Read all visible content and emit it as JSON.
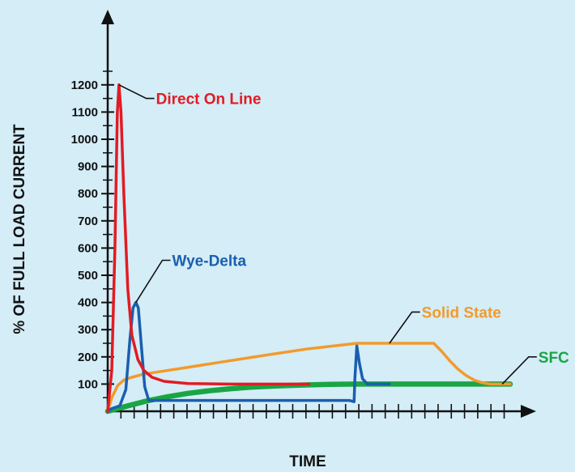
{
  "chart_data": {
    "type": "line",
    "title": "",
    "xlabel": "TIME",
    "ylabel": "% OF FULL LOAD CURRENT",
    "ylim": [
      0,
      1250
    ],
    "xlim": [
      0,
      100
    ],
    "yticks": [
      "100",
      "200",
      "300",
      "400",
      "500",
      "600",
      "700",
      "800",
      "900",
      "1000",
      "1100",
      "1200"
    ],
    "ytick_values": [
      100,
      200,
      300,
      400,
      500,
      600,
      700,
      800,
      900,
      1000,
      1100,
      1200
    ],
    "x_tick_count": 30,
    "grid": false,
    "series": [
      {
        "name": "Direct On Line",
        "color": "#e21b23",
        "points": [
          [
            0,
            0
          ],
          [
            1,
            150
          ],
          [
            1.8,
            600
          ],
          [
            2.4,
            1100
          ],
          [
            2.8,
            1200
          ],
          [
            3.3,
            1100
          ],
          [
            4,
            800
          ],
          [
            5,
            450
          ],
          [
            6,
            280
          ],
          [
            7.5,
            190
          ],
          [
            9,
            150
          ],
          [
            11,
            125
          ],
          [
            14,
            110
          ],
          [
            20,
            102
          ],
          [
            30,
            100
          ],
          [
            50,
            100
          ]
        ]
      },
      {
        "name": "Wye-Delta",
        "color": "#1a5fae",
        "points": [
          [
            0,
            0
          ],
          [
            1,
            10
          ],
          [
            3,
            20
          ],
          [
            4.5,
            80
          ],
          [
            5.5,
            260
          ],
          [
            6.3,
            380
          ],
          [
            7,
            400
          ],
          [
            7.6,
            380
          ],
          [
            8.3,
            250
          ],
          [
            9.2,
            90
          ],
          [
            10.2,
            40
          ],
          [
            12,
            40
          ],
          [
            30,
            40
          ],
          [
            60,
            40
          ],
          [
            61.2,
            35
          ],
          [
            61.4,
            120
          ],
          [
            61.9,
            240
          ],
          [
            62.5,
            180
          ],
          [
            63.3,
            120
          ],
          [
            64.5,
            100
          ],
          [
            67,
            100
          ],
          [
            70,
            100
          ]
        ]
      },
      {
        "name": "Solid State",
        "color": "#f39a2b",
        "points": [
          [
            0,
            0
          ],
          [
            1,
            50
          ],
          [
            2.5,
            95
          ],
          [
            4,
            115
          ],
          [
            6,
            125
          ],
          [
            8,
            133
          ],
          [
            10,
            139
          ],
          [
            20,
            162
          ],
          [
            30,
            185
          ],
          [
            40,
            208
          ],
          [
            50,
            230
          ],
          [
            62,
            250
          ],
          [
            81,
            250
          ],
          [
            83,
            220
          ],
          [
            85,
            185
          ],
          [
            87,
            155
          ],
          [
            89,
            132
          ],
          [
            91,
            115
          ],
          [
            93,
            105
          ],
          [
            95,
            100
          ],
          [
            98,
            100
          ],
          [
            100,
            100
          ]
        ]
      },
      {
        "name": "SFC",
        "color": "#1aa544",
        "points": [
          [
            0,
            0
          ],
          [
            5,
            20
          ],
          [
            10,
            39
          ],
          [
            15,
            54
          ],
          [
            20,
            66
          ],
          [
            25,
            75
          ],
          [
            30,
            82
          ],
          [
            35,
            88
          ],
          [
            40,
            92
          ],
          [
            45,
            95
          ],
          [
            50,
            97
          ],
          [
            55,
            99
          ],
          [
            62,
            100
          ],
          [
            80,
            100
          ],
          [
            100,
            100
          ]
        ]
      }
    ],
    "annotations": [
      {
        "series": "Direct On Line",
        "text": "Direct On Line",
        "at": [
          2.8,
          1200
        ],
        "label_at": [
          12,
          1150
        ]
      },
      {
        "series": "Wye-Delta",
        "text": "Wye-Delta",
        "at": [
          7,
          400
        ],
        "label_at": [
          16,
          555
        ]
      },
      {
        "series": "Solid State",
        "text": "Solid State",
        "at": [
          70,
          250
        ],
        "label_at": [
          78,
          365
        ]
      },
      {
        "series": "SFC",
        "text": "SFC",
        "at": [
          98,
          100
        ],
        "label_at": [
          107,
          200
        ]
      }
    ]
  }
}
